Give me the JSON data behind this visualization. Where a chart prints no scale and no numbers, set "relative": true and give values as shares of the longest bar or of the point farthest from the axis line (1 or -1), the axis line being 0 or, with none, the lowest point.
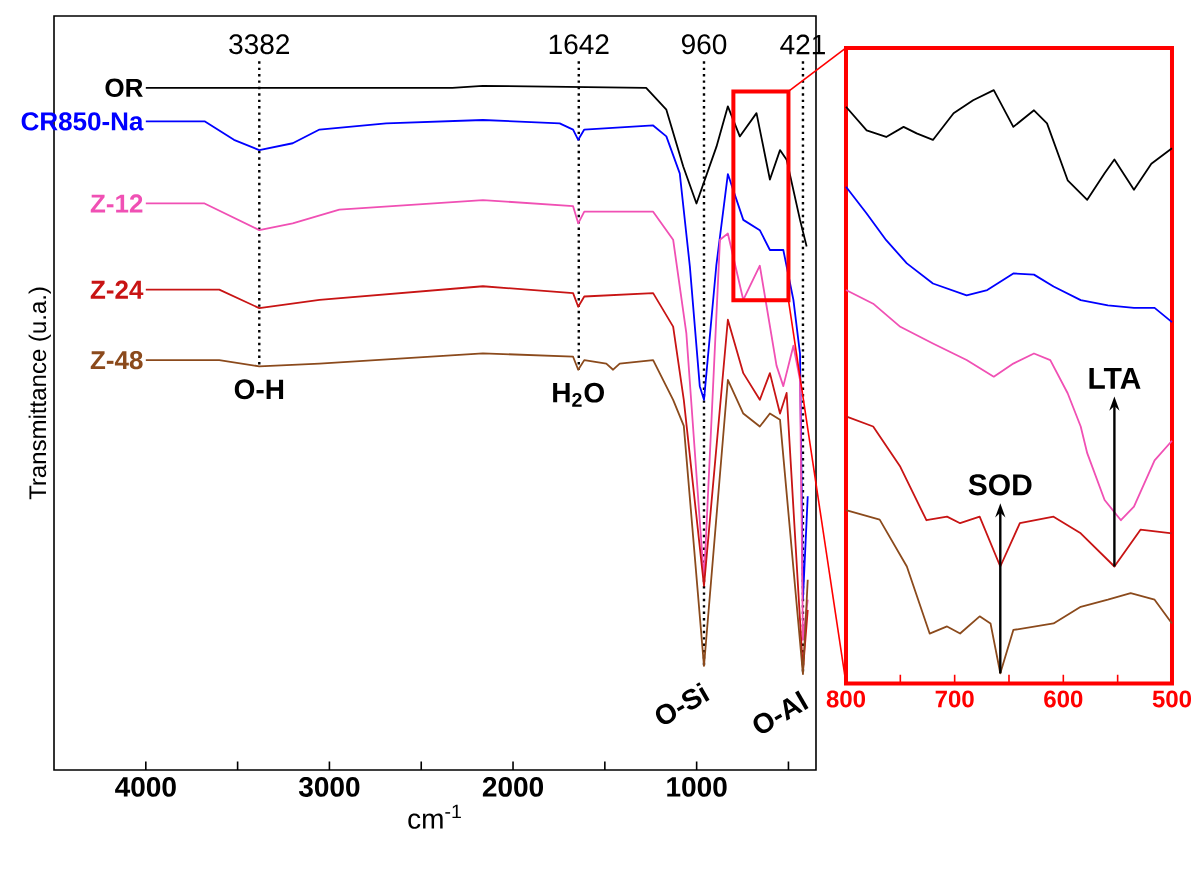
{
  "chart_data": [
    {
      "type": "line",
      "xlabel": "cm$^{-1}$",
      "ylabel": "Transmittance (u.a.)",
      "relative": true,
      "xlim": [
        4500,
        350
      ],
      "xticks": [
        4000,
        {
          "value": 3500,
          "label": null
        },
        3000,
        {
          "value": 2500,
          "label": null
        },
        2000,
        {
          "value": 1500,
          "label": null
        },
        1000,
        {
          "value": 500,
          "label": null
        }
      ],
      "series": [
        {
          "name": "OR",
          "color": "#000000",
          "x": [
            4000,
            2330,
            2165,
            1275,
            1165,
            1073,
            1001,
            892,
            830,
            765,
            674,
            601,
            546,
            510,
            437,
            401
          ],
          "values": [
            0.997,
            0.997,
            1.0,
            0.997,
            0.965,
            0.882,
            0.828,
            0.911,
            0.97,
            0.926,
            0.96,
            0.863,
            0.906,
            0.892,
            0.804,
            0.765
          ]
        },
        {
          "name": "CR850-Na",
          "color": "#0000ff",
          "x": [
            4000,
            3680,
            3520,
            3382,
            3200,
            3054,
            2691,
            2164,
            1746,
            1673,
            1645,
            1612,
            1237,
            1165,
            1092,
            1037,
            983,
            960,
            893,
            830,
            746,
            656,
            601,
            528,
            473,
            437,
            421,
            395
          ],
          "values": [
            0.948,
            0.948,
            0.921,
            0.906,
            0.916,
            0.936,
            0.945,
            0.95,
            0.945,
            0.936,
            0.921,
            0.936,
            0.942,
            0.926,
            0.872,
            0.736,
            0.561,
            0.541,
            0.737,
            0.871,
            0.804,
            0.789,
            0.76,
            0.76,
            0.687,
            0.608,
            0.25,
            0.4
          ]
        },
        {
          "name": "Z-12",
          "color": "#f050b4",
          "x": [
            4000,
            3680,
            3382,
            3200,
            2946,
            2164,
            1673,
            1645,
            1612,
            1237,
            1128,
            1056,
            960,
            873,
            830,
            746,
            656,
            565,
            528,
            473,
            437,
            421,
            395
          ],
          "values": [
            0.828,
            0.828,
            0.789,
            0.799,
            0.819,
            0.833,
            0.824,
            0.799,
            0.816,
            0.816,
            0.775,
            0.638,
            0.278,
            0.775,
            0.784,
            0.687,
            0.737,
            0.591,
            0.561,
            0.62,
            0.57,
            0.19,
            0.249
          ]
        },
        {
          "name": "Z-24",
          "color": "#c81414",
          "x": [
            4000,
            3600,
            3382,
            3054,
            2164,
            1673,
            1645,
            1612,
            1237,
            1128,
            1070,
            960,
            830,
            746,
            656,
            601,
            546,
            510,
            421,
            395
          ],
          "values": [
            0.702,
            0.702,
            0.675,
            0.687,
            0.707,
            0.697,
            0.677,
            0.692,
            0.697,
            0.648,
            0.541,
            0.269,
            0.658,
            0.58,
            0.541,
            0.58,
            0.521,
            0.551,
            0.146,
            0.234
          ]
        },
        {
          "name": "Z-48",
          "color": "#8b4a1c",
          "x": [
            4000,
            3600,
            3382,
            3054,
            2164,
            1673,
            1645,
            1612,
            1492,
            1455,
            1419,
            1237,
            1128,
            1070,
            960,
            830,
            746,
            656,
            601,
            546,
            421,
            395
          ],
          "values": [
            0.599,
            0.599,
            0.59,
            0.594,
            0.609,
            0.604,
            0.585,
            0.599,
            0.594,
            0.585,
            0.594,
            0.599,
            0.541,
            0.503,
            0.152,
            0.57,
            0.521,
            0.502,
            0.521,
            0.512,
            0.14,
            0.278
          ]
        }
      ],
      "ref_lines": [
        {
          "axis": "x",
          "value": 3382,
          "label": "3382",
          "line_style": "dotted"
        },
        {
          "axis": "x",
          "value": 1642,
          "label": "1642",
          "line_style": "dotted"
        },
        {
          "axis": "x",
          "value": 960,
          "label": "960",
          "line_style": "dotted"
        },
        {
          "axis": "x",
          "value": 421,
          "label": "421",
          "line_style": "dotted"
        }
      ],
      "annotations": [
        {
          "text": "O-H",
          "x": 3382,
          "y": 0.59
        },
        {
          "text": "H$_{2}$O",
          "x": 1645,
          "y": 0.585
        },
        {
          "text": "O-Si",
          "x": 960,
          "y": 0.152
        },
        {
          "text": "O-Al",
          "x": 421,
          "y": 0.14
        }
      ]
    },
    {
      "type": "line",
      "relative": true,
      "xlim": [
        800,
        500
      ],
      "xticks": [
        800,
        {
          "value": 750,
          "label": null
        },
        700,
        {
          "value": 650,
          "label": null
        },
        600,
        {
          "value": 550,
          "label": null
        },
        500
      ],
      "series": [
        {
          "color": "#000000",
          "x": [
            800,
            781,
            763,
            747,
            735,
            720,
            701,
            683,
            664,
            646,
            627,
            615,
            596,
            578,
            562,
            553,
            535,
            519,
            500
          ],
          "values": [
            0.972,
            0.932,
            0.921,
            0.938,
            0.927,
            0.916,
            0.961,
            0.983,
            1.0,
            0.938,
            0.966,
            0.944,
            0.848,
            0.815,
            0.86,
            0.883,
            0.832,
            0.876,
            0.902
          ]
        },
        {
          "color": "#0000ff",
          "x": [
            800,
            781,
            763,
            744,
            720,
            689,
            670,
            646,
            627,
            609,
            584,
            559,
            535,
            516,
            500
          ],
          "values": [
            0.837,
            0.792,
            0.747,
            0.708,
            0.674,
            0.654,
            0.663,
            0.691,
            0.689,
            0.669,
            0.646,
            0.637,
            0.633,
            0.633,
            0.609
          ]
        },
        {
          "color": "#f050b4",
          "x": [
            800,
            775,
            750,
            720,
            689,
            664,
            646,
            627,
            612,
            596,
            584,
            578,
            562,
            547,
            535,
            516,
            500
          ],
          "values": [
            0.663,
            0.64,
            0.601,
            0.573,
            0.545,
            0.517,
            0.539,
            0.556,
            0.545,
            0.489,
            0.433,
            0.388,
            0.309,
            0.275,
            0.298,
            0.376,
            0.409
          ]
        },
        {
          "color": "#c81414",
          "x": [
            800,
            775,
            750,
            726,
            707,
            695,
            677,
            658,
            640,
            609,
            584,
            553,
            529,
            500
          ],
          "values": [
            0.45,
            0.433,
            0.365,
            0.275,
            0.281,
            0.27,
            0.281,
            0.197,
            0.27,
            0.281,
            0.253,
            0.197,
            0.259,
            0.253
          ]
        },
        {
          "color": "#8b4a1c",
          "x": [
            800,
            769,
            744,
            723,
            707,
            695,
            677,
            667,
            658,
            646,
            609,
            584,
            559,
            538,
            516,
            500
          ],
          "values": [
            0.292,
            0.276,
            0.197,
            0.084,
            0.096,
            0.084,
            0.113,
            0.101,
            0.017,
            0.09,
            0.101,
            0.129,
            0.141,
            0.152,
            0.141,
            0.101
          ]
        }
      ],
      "annotations": [
        {
          "text": "SOD",
          "x": 658,
          "y": 0.017
        },
        {
          "text": "LTA",
          "x": 553,
          "y": 0.197
        }
      ]
    }
  ]
}
